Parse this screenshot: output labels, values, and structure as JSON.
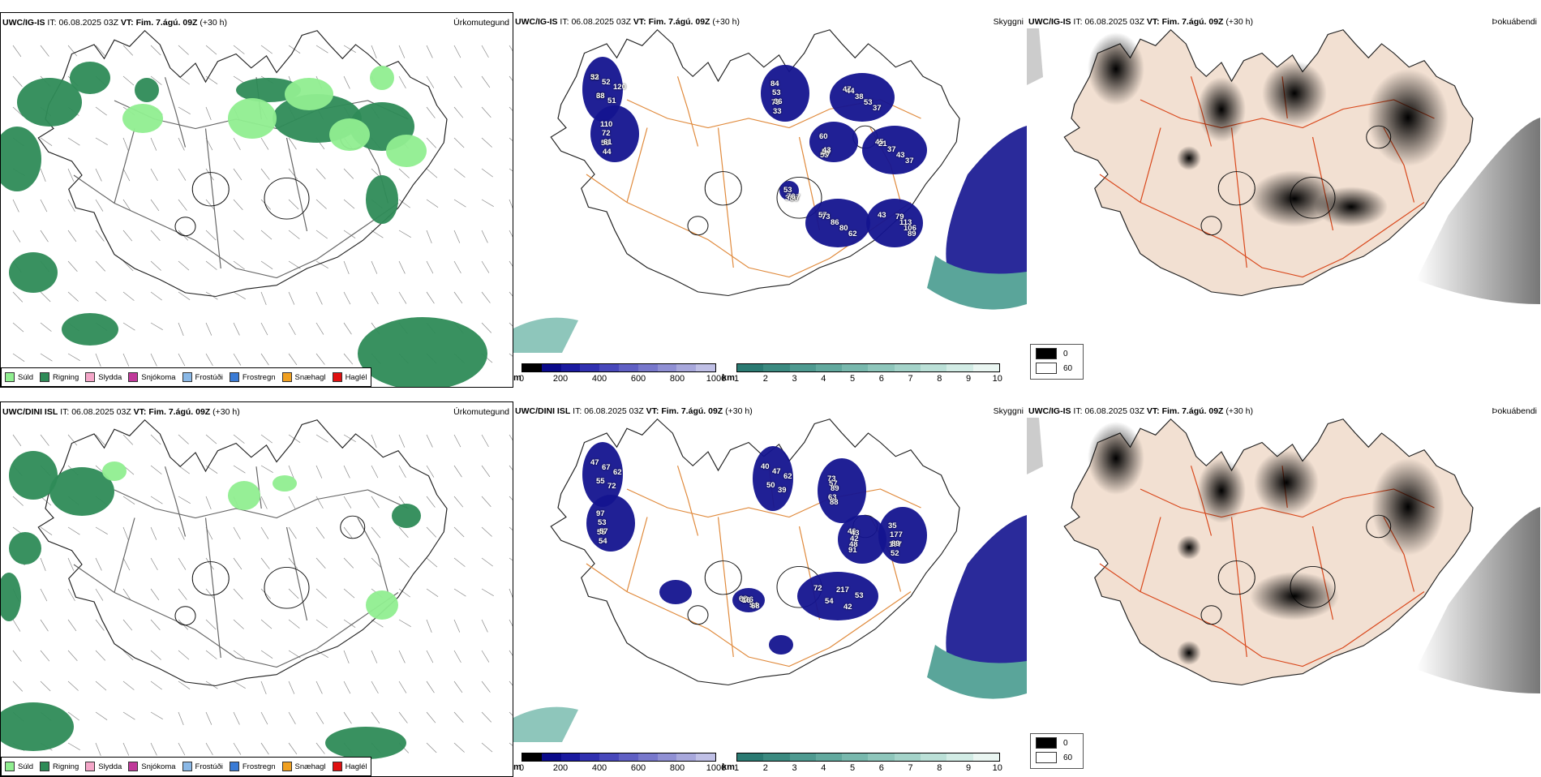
{
  "panels": [
    {
      "id": "top-left",
      "model": "UWC/IG-IS",
      "it_label": "IT:",
      "it_value": "06.08.2025 03Z",
      "vt_label": "VT:",
      "vt_value": "Fim. 7.ágú. 09Z",
      "lead": "(+30 h)",
      "field": "Úrkomutegund"
    },
    {
      "id": "top-middle",
      "model": "UWC/IG-IS",
      "it_label": "IT:",
      "it_value": "06.08.2025 03Z",
      "vt_label": "VT:",
      "vt_value": "Fim. 7.ágú. 09Z",
      "lead": "(+30 h)",
      "field": "Skyggni"
    },
    {
      "id": "top-right",
      "model": "UWC/IG-IS",
      "it_label": "IT:",
      "it_value": "06.08.2025 03Z",
      "vt_label": "VT:",
      "vt_value": "Fim. 7.ágú. 09Z",
      "lead": "(+30 h)",
      "field": "Þokuábendi"
    },
    {
      "id": "bottom-left",
      "model": "UWC/DINI ISL",
      "it_label": "IT:",
      "it_value": "06.08.2025 03Z",
      "vt_label": "VT:",
      "vt_value": "Fim. 7.ágú. 09Z",
      "lead": "(+30 h)",
      "field": "Úrkomutegund"
    },
    {
      "id": "bottom-middle",
      "model": "UWC/DINI ISL",
      "it_label": "IT:",
      "it_value": "06.08.2025 03Z",
      "vt_label": "VT:",
      "vt_value": "Fim. 7.ágú. 09Z",
      "lead": "(+30 h)",
      "field": "Skyggni"
    },
    {
      "id": "bottom-right",
      "model": "UWC/IG-IS",
      "it_label": "IT:",
      "it_value": "06.08.2025 03Z",
      "vt_label": "VT:",
      "vt_value": "Fim. 7.ágú. 09Z",
      "lead": "(+30 h)",
      "field": "Þokuábendi"
    }
  ],
  "precip_legend": [
    {
      "label": "Súld",
      "color": "#90ee90"
    },
    {
      "label": "Rigning",
      "color": "#2e8b57"
    },
    {
      "label": "Slydda",
      "color": "#f4a6c8"
    },
    {
      "label": "Snjókoma",
      "color": "#c0399a"
    },
    {
      "label": "Frostúði",
      "color": "#8ab8e6"
    },
    {
      "label": "Frostregn",
      "color": "#3a7bd5"
    },
    {
      "label": "Snæhagl",
      "color": "#f0a020"
    },
    {
      "label": "Haglél",
      "color": "#e01010"
    }
  ],
  "vis_m_legend": {
    "unit": "m",
    "ticks": [
      "0",
      "200",
      "400",
      "600",
      "800",
      "1000"
    ],
    "colors": [
      "#000000",
      "#0a0a8a",
      "#1a1aa0",
      "#3030b0",
      "#4848bb",
      "#6060c4",
      "#7878cc",
      "#9090d4",
      "#a8a8dc",
      "#c0c0e6"
    ]
  },
  "vis_km_legend": {
    "unit": "km",
    "ticks": [
      "1",
      "2",
      "3",
      "4",
      "5",
      "6",
      "7",
      "8",
      "9",
      "10"
    ],
    "colors": [
      "#2a7a72",
      "#3b8a80",
      "#4e9a90",
      "#62a99e",
      "#78b8ad",
      "#8ec6bb",
      "#a4d3c9",
      "#bbe0d7",
      "#d2ece5",
      "#eaf6f2"
    ]
  },
  "fog_legend": [
    {
      "label": "0",
      "color": "#000000"
    },
    {
      "label": "60",
      "color": "#ffffff"
    }
  ],
  "top_vis_numbers": [
    "53",
    "63",
    "52",
    "51",
    "120",
    "110",
    "50",
    "72",
    "44",
    "61",
    "84",
    "73",
    "53",
    "33",
    "36",
    "47",
    "37",
    "53",
    "38",
    "44",
    "60",
    "53",
    "46",
    "54",
    "43",
    "45",
    "37",
    "43",
    "37",
    "21",
    "57",
    "62",
    "80",
    "86",
    "73",
    "43",
    "89",
    "106",
    "113",
    "79",
    "53",
    "60",
    "38",
    "47",
    "76",
    "32",
    "38"
  ],
  "bottom_vis_numbers": [
    "47",
    "55",
    "67",
    "72",
    "62",
    "97",
    "55",
    "53",
    "54",
    "57",
    "40",
    "50",
    "47",
    "39",
    "62",
    "73",
    "63",
    "57",
    "88",
    "89",
    "46",
    "91",
    "48",
    "42",
    "43",
    "35",
    "197",
    "177",
    "52",
    "89",
    "72",
    "42",
    "54",
    "53",
    "217",
    "68",
    "54",
    "126",
    "68",
    "16"
  ]
}
